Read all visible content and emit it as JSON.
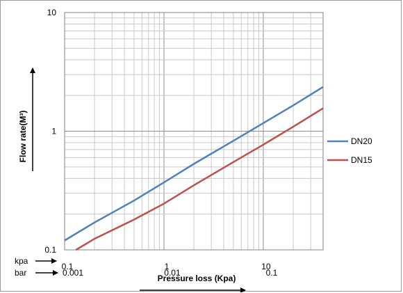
{
  "chart_data": {
    "type": "line",
    "title": "",
    "xlabel": "Pressure loss (Kpa)",
    "ylabel": "Flow rate(M³)",
    "x_scale": "log",
    "y_scale": "log",
    "xlim": [
      0.1,
      40
    ],
    "ylim": [
      0.1,
      10
    ],
    "grid": true,
    "legend_position": "right",
    "x_tick_labels": [
      "0.1",
      "1",
      "10"
    ],
    "y_tick_labels": [
      "0.1",
      "1",
      "10"
    ],
    "x_tick_values": [
      0.1,
      1,
      10
    ],
    "y_tick_values": [
      0.1,
      1,
      10
    ],
    "secondary_x_unit_labels": {
      "kpa": "kpa",
      "bar": "bar"
    },
    "secondary_x_tick_labels": [
      "0.001",
      "0.01",
      "0.1"
    ],
    "series": [
      {
        "name": "DN20",
        "color": "#4F81BD",
        "x": [
          0.1,
          0.2,
          0.5,
          1,
          2,
          5,
          10,
          20,
          40
        ],
        "y": [
          0.12,
          0.17,
          0.26,
          0.37,
          0.53,
          0.83,
          1.17,
          1.65,
          2.36
        ]
      },
      {
        "name": "DN15",
        "color": "#C0504D",
        "x": [
          0.13,
          0.2,
          0.5,
          1,
          2,
          5,
          10,
          20,
          40
        ],
        "y": [
          0.1,
          0.124,
          0.18,
          0.245,
          0.35,
          0.55,
          0.77,
          1.09,
          1.56
        ]
      }
    ]
  }
}
